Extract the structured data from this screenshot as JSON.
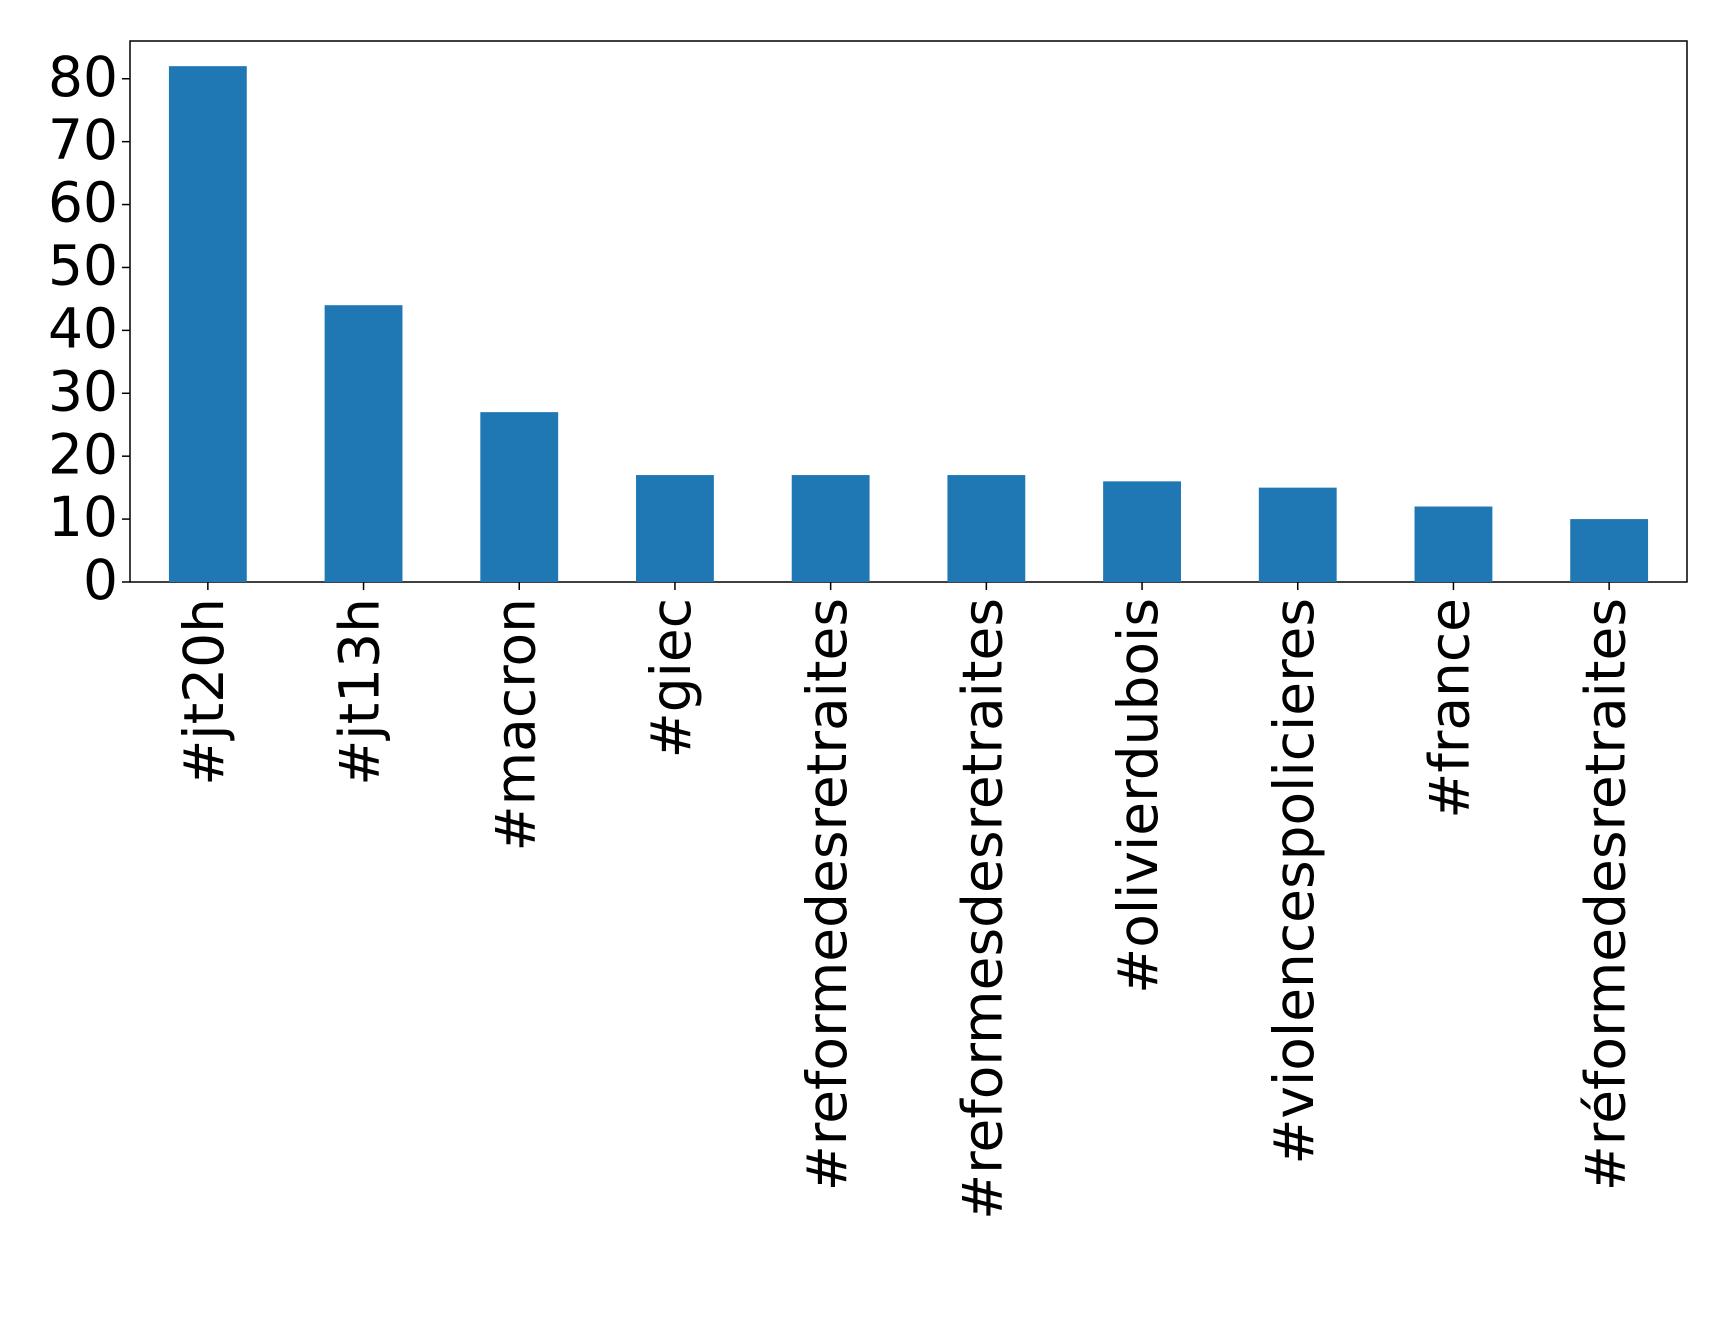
{
  "chart_data": {
    "type": "bar",
    "categories": [
      "#jt20h",
      "#jt13h",
      "#macron",
      "#giec",
      "#reformedesretraites",
      "#reformesdesretraites",
      "#olivierdubois",
      "#violencespolicieres",
      "#france",
      "#réformedesretraites"
    ],
    "values": [
      82,
      44,
      27,
      17,
      17,
      17,
      16,
      15,
      12,
      10
    ],
    "color": "#1f77b4",
    "ylim": [
      0,
      86
    ],
    "yticks": [
      0,
      10,
      20,
      30,
      40,
      50,
      60,
      70,
      80
    ],
    "grid": false
  }
}
